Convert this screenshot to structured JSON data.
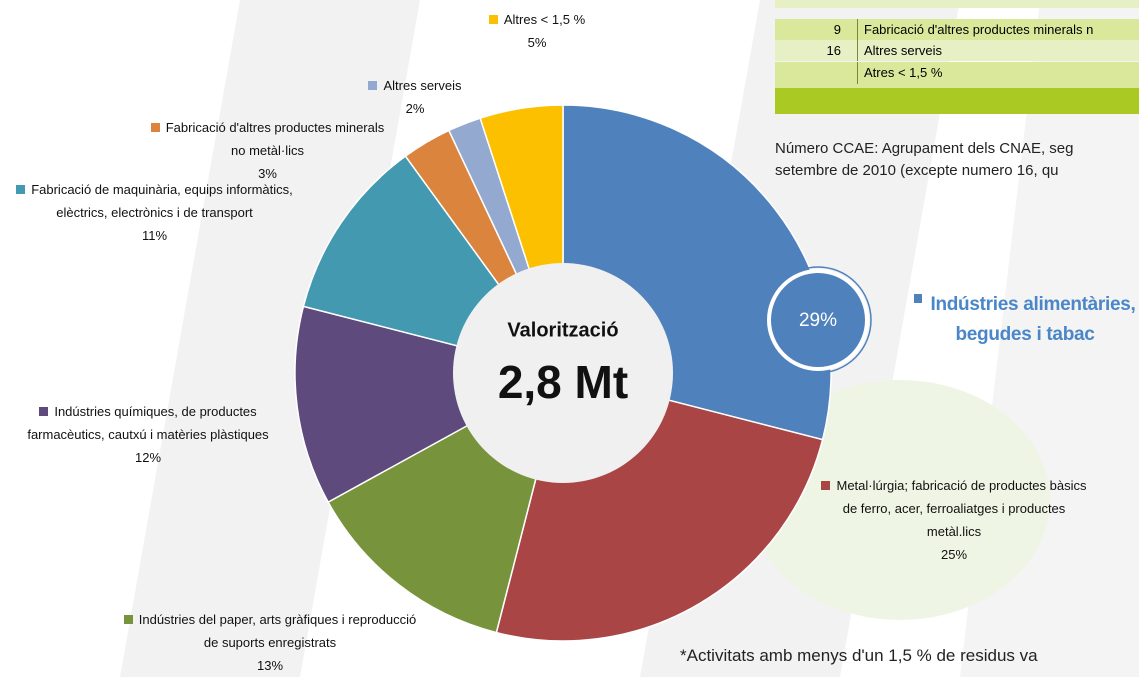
{
  "chart_data": {
    "type": "pie",
    "center_title": "Valorització",
    "center_value": "2,8 Mt",
    "categories": [
      "Indústries alimentàries, begudes i tabac",
      "Metal·lúrgia; fabricació de productes bàsics de ferro, acer, ferroaliatges i productes metàl.lics",
      "Indústries del paper, arts gràfiques i reproducció de suports enregistrats",
      "Indústries químiques, de productes farmacèutics, cautxú i matèries plàstiques",
      "Fabricació de maquinària, equips informàtics, elèctrics, electrònics i de transport",
      "Fabricació d'altres productes minerals no metàl·lics",
      "Altres serveis",
      "Altres < 1,5 %"
    ],
    "values": [
      29,
      25,
      13,
      12,
      11,
      3,
      2,
      5
    ],
    "value_labels": [
      "29%",
      "25%",
      "13%",
      "12%",
      "11%",
      "3%",
      "2%",
      "5%"
    ],
    "colors": [
      "#4f81bd",
      "#a94645",
      "#77933c",
      "#5e4a7c",
      "#4299b0",
      "#db843d",
      "#94a9d0",
      "#fdc000"
    ]
  },
  "table": {
    "rows": [
      {
        "number": "9",
        "text": "Fabricació d'altres productes minerals n"
      },
      {
        "number": "16",
        "text": "Altres serveis"
      },
      {
        "text": "Atres < 1,5 %"
      }
    ]
  },
  "note": [
    "Número CCAE: Agrupament dels CNAE, seg",
    "setembre de 2010 (excepte numero 16, qu"
  ],
  "footnote": "*Activitats amb menys d'un 1,5 % de residus va"
}
